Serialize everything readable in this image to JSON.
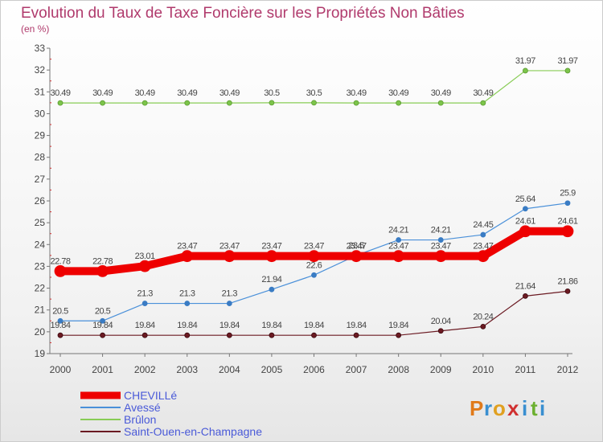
{
  "chart_data": {
    "type": "line",
    "title": "Evolution du Taux de Taxe Foncière sur les Propriétés Non Bâties",
    "subtitle": "(en %)",
    "x": [
      "2000",
      "2001",
      "2002",
      "2003",
      "2004",
      "2005",
      "2006",
      "2007",
      "2008",
      "2009",
      "2010",
      "2011",
      "2012"
    ],
    "ylim": [
      19,
      33
    ],
    "yticks": [
      "19",
      "20",
      "21",
      "22",
      "23",
      "24",
      "25",
      "26",
      "27",
      "28",
      "29",
      "30",
      "31",
      "32",
      "33"
    ],
    "grid": false,
    "legend_position": "bottom-left",
    "series": [
      {
        "name": "Brûlon",
        "color": "#88cc55",
        "values": [
          30.49,
          30.49,
          30.49,
          30.49,
          30.49,
          30.5,
          30.5,
          30.49,
          30.49,
          30.49,
          30.49,
          31.97,
          31.97
        ],
        "labels": [
          "30.49",
          "30.49",
          "30.49",
          "30.49",
          "30.49",
          "30.5",
          "30.5",
          "30.49",
          "30.49",
          "30.49",
          "30.49",
          "31.97",
          "31.97"
        ]
      },
      {
        "name": "Saint-Ouen-en-Champagne",
        "color": "#6b1a22",
        "values": [
          19.84,
          19.84,
          19.84,
          19.84,
          19.84,
          19.84,
          19.84,
          19.84,
          19.84,
          20.04,
          20.24,
          21.64,
          21.86
        ],
        "labels": [
          "19.84",
          "19.84",
          "19.84",
          "19.84",
          "19.84",
          "19.84",
          "19.84",
          "19.84",
          "19.84",
          "20.04",
          "20.24",
          "21.64",
          "21.86"
        ]
      },
      {
        "name": "Avessé",
        "color": "#4a90d9",
        "values": [
          20.5,
          20.5,
          21.3,
          21.3,
          21.3,
          21.94,
          22.6,
          23.5,
          24.21,
          24.21,
          24.45,
          25.64,
          25.9
        ],
        "labels": [
          "20.5",
          "20.5",
          "21.3",
          "21.3",
          "21.3",
          "21.94",
          "22.6",
          "23.5",
          "24.21",
          "24.21",
          "24.45",
          "25.64",
          "25.9"
        ]
      },
      {
        "name": "CHEVILLé",
        "color": "#ee0000",
        "values": [
          22.78,
          22.78,
          23.01,
          23.47,
          23.47,
          23.47,
          23.47,
          23.47,
          23.47,
          23.47,
          23.47,
          24.61,
          24.61
        ],
        "labels": [
          "22.78",
          "22.78",
          "23.01",
          "23.47",
          "23.47",
          "23.47",
          "23.47",
          "23.47",
          "23.47",
          "23.47",
          "23.47",
          "24.61",
          "24.61"
        ]
      }
    ],
    "legend_order": [
      "CHEVILLé",
      "Avessé",
      "Brûlon",
      "Saint-Ouen-en-Champagne"
    ]
  },
  "logo": {
    "letters": [
      "P",
      "r",
      "o",
      "x",
      "i",
      "t",
      "i"
    ],
    "colors": [
      "#e07a1a",
      "#3a8fd0",
      "#e0a020",
      "#d03030",
      "#3a8fd0",
      "#6cb030",
      "#3a8fd0"
    ]
  }
}
